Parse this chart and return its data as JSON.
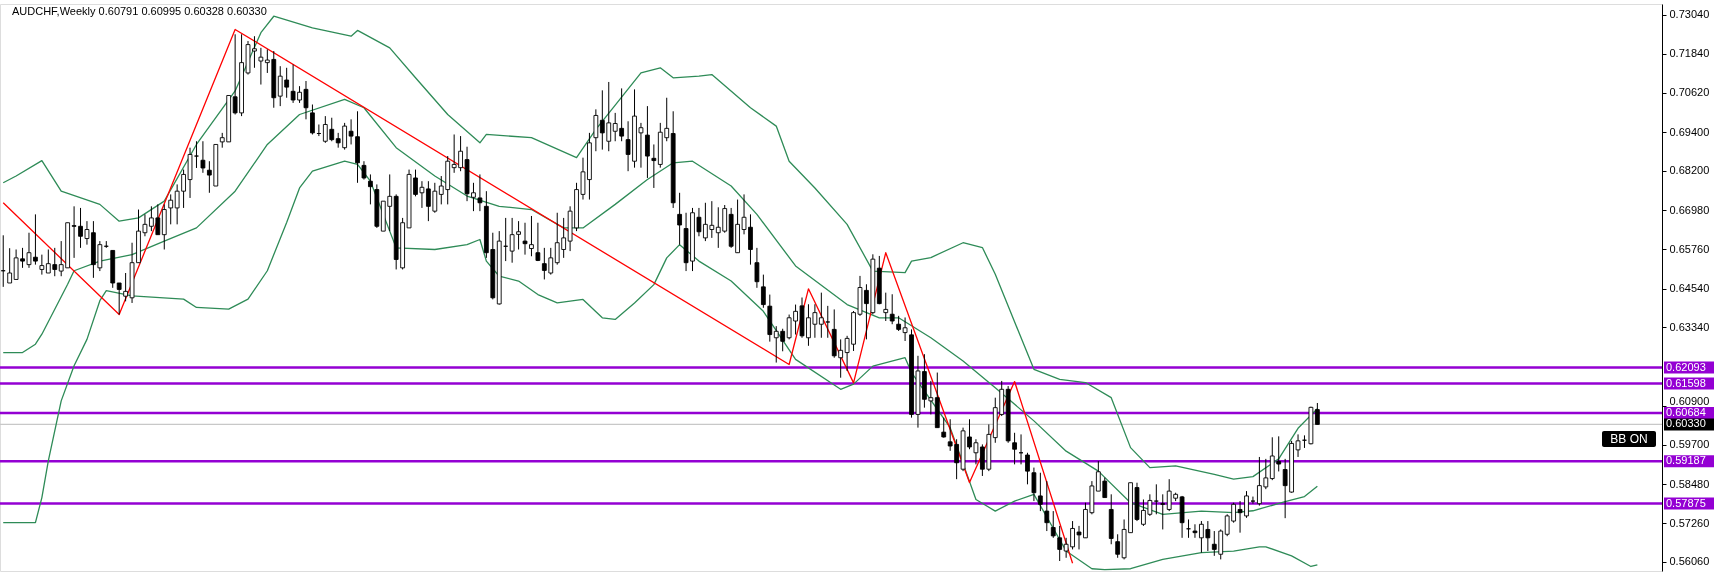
{
  "chart_data": {
    "type": "candlestick",
    "title": "AUDCHF,Weekly 0.60791 0.60995 0.60328 0.60330",
    "categories": [
      null,
      null,
      null,
      null,
      null,
      null,
      null,
      null,
      null,
      null,
      null,
      null,
      null,
      null,
      null,
      null,
      null,
      null,
      null,
      null,
      null,
      null,
      null,
      null,
      null,
      null,
      null,
      null,
      null,
      null,
      null,
      null,
      null,
      null,
      null,
      null,
      null,
      null,
      null,
      null,
      null,
      null,
      null,
      null,
      null,
      null,
      null,
      null,
      null,
      null,
      null,
      null,
      null,
      null,
      null,
      null,
      null,
      null,
      null,
      null,
      null,
      null,
      null,
      null,
      null,
      null,
      null,
      null,
      null,
      null,
      null,
      null,
      null,
      null,
      null,
      null,
      null,
      null,
      null,
      null,
      null,
      null,
      null,
      null,
      null,
      null,
      null,
      null,
      null,
      null,
      null,
      null,
      null,
      null,
      null,
      null,
      null,
      null,
      null,
      null,
      null,
      null,
      null,
      null,
      null,
      null,
      null,
      null,
      null,
      null,
      null,
      null,
      null,
      null,
      null,
      null,
      null,
      null,
      null,
      null,
      null,
      null,
      null,
      null,
      null,
      null,
      null,
      null,
      null,
      null,
      null,
      null,
      null,
      null,
      null,
      null,
      null,
      null,
      null,
      null,
      null,
      null,
      null,
      null,
      null,
      null,
      null,
      null,
      null,
      null,
      null,
      null,
      null,
      null,
      null,
      null,
      null,
      null,
      null,
      null,
      null,
      null,
      null,
      null,
      null,
      null,
      null,
      null,
      null,
      null,
      null,
      null,
      null,
      null,
      null,
      null,
      null,
      null,
      null,
      null,
      null,
      null,
      null,
      null,
      null,
      null,
      null,
      null,
      null,
      null,
      null,
      null,
      null,
      null,
      null,
      null,
      null,
      null,
      null,
      null,
      null,
      null,
      null,
      null,
      null,
      null,
      null,
      null,
      null,
      null,
      null,
      null,
      null,
      null,
      null,
      null,
      null,
      null,
      null,
      null,
      null,
      null,
      null,
      null,
      null,
      null,
      null,
      null,
      null,
      null,
      null,
      null,
      null,
      null,
      null,
      null,
      null,
      null,
      null,
      null,
      null,
      null,
      null,
      null,
      null,
      null,
      null,
      null,
      null,
      null,
      null,
      null,
      null,
      null,
      null,
      null,
      null,
      null
    ],
    "ohlc": [
      [
        0.651,
        0.662,
        0.646,
        0.651
      ],
      [
        0.6472,
        0.658,
        0.6472,
        0.6503
      ],
      [
        0.6483,
        0.6576,
        0.6483,
        0.655
      ],
      [
        0.6547,
        0.6581,
        0.6519,
        0.654
      ],
      [
        0.6529,
        0.6628,
        0.6519,
        0.6566
      ],
      [
        0.6552,
        0.6685,
        0.6529,
        0.654
      ],
      [
        0.6514,
        0.656,
        0.6498,
        0.6526
      ],
      [
        0.6503,
        0.6576,
        0.6503,
        0.6532
      ],
      [
        0.6529,
        0.6581,
        0.6493,
        0.6514
      ],
      [
        0.6509,
        0.6602,
        0.6493,
        0.6529
      ],
      [
        0.6519,
        0.6659,
        0.6519,
        0.6659
      ],
      [
        0.665,
        0.671,
        0.655,
        0.6648
      ],
      [
        0.6648,
        0.6705,
        0.6581,
        0.6617
      ],
      [
        0.661,
        0.6664,
        0.6591,
        0.6638
      ],
      [
        0.6628,
        0.6664,
        0.6488,
        0.6529
      ],
      [
        0.6519,
        0.6602,
        0.6509,
        0.6591
      ],
      [
        0.6586,
        0.6602,
        0.6581,
        0.6586
      ],
      [
        0.6573,
        0.6573,
        0.6457,
        0.6472
      ],
      [
        0.6472,
        0.6472,
        0.6374,
        0.6452
      ],
      [
        0.6431,
        0.6503,
        0.6415,
        0.6446
      ],
      [
        0.6426,
        0.6597,
        0.641,
        0.6535
      ],
      [
        0.6535,
        0.67,
        0.6535,
        0.6633
      ],
      [
        0.6628,
        0.6685,
        0.6617,
        0.6654
      ],
      [
        0.6648,
        0.671,
        0.6633,
        0.6674
      ],
      [
        0.6674,
        0.6716,
        0.6622,
        0.6622
      ],
      [
        0.6622,
        0.6716,
        0.6576,
        0.67
      ],
      [
        0.6705,
        0.6747,
        0.6654,
        0.6729
      ],
      [
        0.6705,
        0.6778,
        0.6654,
        0.6757
      ],
      [
        0.6757,
        0.6824,
        0.6705,
        0.6809
      ],
      [
        0.6793,
        0.6892,
        0.6736,
        0.6871
      ],
      [
        0.6866,
        0.6912,
        0.6829,
        0.6866
      ],
      [
        0.6853,
        0.6912,
        0.6814,
        0.6829
      ],
      [
        0.6822,
        0.685,
        0.6752,
        0.6807
      ],
      [
        0.6773,
        0.6902,
        0.6773,
        0.6902
      ],
      [
        0.691,
        0.6938,
        0.6892,
        0.6923
      ],
      [
        0.691,
        0.7054,
        0.691,
        0.7054
      ],
      [
        0.705,
        0.7244,
        0.6995,
        0.7
      ],
      [
        0.7,
        0.7244,
        0.699,
        0.7156
      ],
      [
        0.7124,
        0.7223,
        0.7119,
        0.7212
      ],
      [
        0.7192,
        0.7238,
        0.714,
        0.7199
      ],
      [
        0.7161,
        0.7202,
        0.7088,
        0.7173
      ],
      [
        0.7156,
        0.7197,
        0.7124,
        0.7164
      ],
      [
        0.7166,
        0.7192,
        0.7016,
        0.7047
      ],
      [
        0.7052,
        0.7145,
        0.7021,
        0.7114
      ],
      [
        0.7102,
        0.714,
        0.7047,
        0.708
      ],
      [
        0.7067,
        0.715,
        0.7031,
        0.704
      ],
      [
        0.704,
        0.7083,
        0.7031,
        0.7064
      ],
      [
        0.7073,
        0.7099,
        0.698,
        0.7016
      ],
      [
        0.7,
        0.7026,
        0.6933,
        0.6938
      ],
      [
        0.6936,
        0.6964,
        0.6928,
        0.6936
      ],
      [
        0.6912,
        0.699,
        0.6907,
        0.6964
      ],
      [
        0.6949,
        0.6985,
        0.6912,
        0.6917
      ],
      [
        0.692,
        0.6938,
        0.6892,
        0.6907
      ],
      [
        0.6892,
        0.6969,
        0.6886,
        0.6959
      ],
      [
        0.6943,
        0.698,
        0.6902,
        0.6928
      ],
      [
        0.6926,
        0.7005,
        0.6783,
        0.6845
      ],
      [
        0.6837,
        0.685,
        0.6793,
        0.6798
      ],
      [
        0.6788,
        0.6809,
        0.6716,
        0.6771
      ],
      [
        0.6762,
        0.6778,
        0.6643,
        0.6648
      ],
      [
        0.6633,
        0.6726,
        0.6633,
        0.6726
      ],
      [
        0.671,
        0.6809,
        0.6633,
        0.6741
      ],
      [
        0.6741,
        0.6747,
        0.6514,
        0.6545
      ],
      [
        0.6519,
        0.6674,
        0.6514,
        0.6659
      ],
      [
        0.6643,
        0.6824,
        0.6643,
        0.6809
      ],
      [
        0.6798,
        0.6824,
        0.6741,
        0.6747
      ],
      [
        0.6752,
        0.6788,
        0.6705,
        0.6769
      ],
      [
        0.6764,
        0.6788,
        0.6664,
        0.671
      ],
      [
        0.6695,
        0.6783,
        0.669,
        0.6757
      ],
      [
        0.6747,
        0.6804,
        0.6716,
        0.6773
      ],
      [
        0.6762,
        0.6866,
        0.6716,
        0.685
      ],
      [
        0.683,
        0.6933,
        0.6814,
        0.684
      ],
      [
        0.683,
        0.6928,
        0.6819,
        0.6881
      ],
      [
        0.6855,
        0.6895,
        0.6726,
        0.6749
      ],
      [
        0.6738,
        0.6783,
        0.6695,
        0.6752
      ],
      [
        0.6736,
        0.6809,
        0.6695,
        0.6721
      ],
      [
        0.671,
        0.6757,
        0.655,
        0.6566
      ],
      [
        0.6576,
        0.6628,
        0.6421,
        0.6426
      ],
      [
        0.6407,
        0.6633,
        0.6405,
        0.6602
      ],
      [
        0.6586,
        0.6674,
        0.654,
        0.6586
      ],
      [
        0.6571,
        0.6674,
        0.6535,
        0.6622
      ],
      [
        0.6623,
        0.6664,
        0.6576,
        0.6631
      ],
      [
        0.6602,
        0.6659,
        0.656,
        0.6594
      ],
      [
        0.6579,
        0.668,
        0.6555,
        0.6591
      ],
      [
        0.6566,
        0.6659,
        0.654,
        0.6542
      ],
      [
        0.6532,
        0.6581,
        0.6483,
        0.6511
      ],
      [
        0.6503,
        0.6581,
        0.6498,
        0.655
      ],
      [
        0.6535,
        0.669,
        0.6529,
        0.6597
      ],
      [
        0.6576,
        0.6674,
        0.655,
        0.6612
      ],
      [
        0.6602,
        0.671,
        0.6571,
        0.6695
      ],
      [
        0.6643,
        0.6783,
        0.6633,
        0.6762
      ],
      [
        0.6747,
        0.6861,
        0.6731,
        0.6817
      ],
      [
        0.6793,
        0.6938,
        0.6731,
        0.6907
      ],
      [
        0.6923,
        0.7011,
        0.6881,
        0.6992
      ],
      [
        0.6977,
        0.707,
        0.6886,
        0.6938
      ],
      [
        0.6912,
        0.7096,
        0.6881,
        0.6969
      ],
      [
        0.6943,
        0.7,
        0.6912,
        0.6967
      ],
      [
        0.6952,
        0.7076,
        0.6912,
        0.6928
      ],
      [
        0.6917,
        0.6974,
        0.6819,
        0.6871
      ],
      [
        0.685,
        0.7073,
        0.683,
        0.699
      ],
      [
        0.6938,
        0.6969,
        0.683,
        0.6954
      ],
      [
        0.6931,
        0.7021,
        0.6798,
        0.6866
      ],
      [
        0.6859,
        0.6902,
        0.6767,
        0.6852
      ],
      [
        0.684,
        0.6969,
        0.683,
        0.694
      ],
      [
        0.6923,
        0.7047,
        0.6912,
        0.6952
      ],
      [
        0.6936,
        0.7005,
        0.6705,
        0.6721
      ],
      [
        0.6685,
        0.6752,
        0.6591,
        0.6652
      ],
      [
        0.6641,
        0.669,
        0.6509,
        0.6535
      ],
      [
        0.654,
        0.6705,
        0.6509,
        0.669
      ],
      [
        0.6676,
        0.6705,
        0.6617,
        0.6631
      ],
      [
        0.6612,
        0.6721,
        0.6602,
        0.6654
      ],
      [
        0.6638,
        0.6726,
        0.6612,
        0.6651
      ],
      [
        0.6628,
        0.6707,
        0.6581,
        0.6645
      ],
      [
        0.6633,
        0.6714,
        0.6628,
        0.6703
      ],
      [
        0.6685,
        0.6705,
        0.6581,
        0.6586
      ],
      [
        0.6566,
        0.6731,
        0.6566,
        0.6654
      ],
      [
        0.6638,
        0.6747,
        0.6623,
        0.6676
      ],
      [
        0.6645,
        0.6685,
        0.6529,
        0.6576
      ],
      [
        0.6535,
        0.6581,
        0.6457,
        0.6476
      ],
      [
        0.646,
        0.6498,
        0.6395,
        0.6405
      ],
      [
        0.64,
        0.6436,
        0.629,
        0.6312
      ],
      [
        0.6302,
        0.6338,
        0.6225,
        0.6322
      ],
      [
        0.6322,
        0.633,
        0.626,
        0.6291
      ],
      [
        0.6302,
        0.6374,
        0.6297,
        0.6364
      ],
      [
        0.6354,
        0.6405,
        0.6312,
        0.6384
      ],
      [
        0.6401,
        0.6427,
        0.6302,
        0.6308
      ],
      [
        0.6302,
        0.6406,
        0.6277,
        0.6364
      ],
      [
        0.6344,
        0.6406,
        0.6302,
        0.638
      ],
      [
        0.6344,
        0.6442,
        0.6302,
        0.6364
      ],
      [
        0.6351,
        0.6401,
        0.6302,
        0.6351
      ],
      [
        0.6328,
        0.639,
        0.624,
        0.6246
      ],
      [
        0.624,
        0.6297,
        0.6178,
        0.6263
      ],
      [
        0.6256,
        0.6308,
        0.6199,
        0.63
      ],
      [
        0.6282,
        0.6385,
        0.6261,
        0.638
      ],
      [
        0.6375,
        0.6494,
        0.637,
        0.6458
      ],
      [
        0.6449,
        0.6468,
        0.6297,
        0.6408
      ],
      [
        0.638,
        0.6561,
        0.6375,
        0.6546
      ],
      [
        0.6518,
        0.6556,
        0.6406,
        0.6408
      ],
      [
        0.638,
        0.6442,
        0.6354,
        0.639
      ],
      [
        0.6375,
        0.6437,
        0.6344,
        0.6354
      ],
      [
        0.6344,
        0.637,
        0.6323,
        0.6328
      ],
      [
        0.6318,
        0.6365,
        0.6292,
        0.6333
      ],
      [
        0.6311,
        0.6328,
        0.6054,
        0.6064
      ],
      [
        0.6064,
        0.6246,
        0.6023,
        0.6199
      ],
      [
        0.6197,
        0.6251,
        0.6085,
        0.6111
      ],
      [
        0.6106,
        0.6168,
        0.6064,
        0.6116
      ],
      [
        0.6116,
        0.6194,
        0.6023,
        0.6023
      ],
      [
        0.6009,
        0.6054,
        0.5992,
        0.5994
      ],
      [
        0.5979,
        0.6049,
        0.5951,
        0.5966
      ],
      [
        0.5971,
        0.5987,
        0.5863,
        0.5914
      ],
      [
        0.5894,
        0.6023,
        0.5888,
        0.6013
      ],
      [
        0.5994,
        0.6049,
        0.5956,
        0.5963
      ],
      [
        0.5945,
        0.5987,
        0.5909,
        0.5976
      ],
      [
        0.5963,
        0.5971,
        0.5873,
        0.5894
      ],
      [
        0.5894,
        0.6033,
        0.5888,
        0.6002
      ],
      [
        0.5992,
        0.6116,
        0.5976,
        0.6085
      ],
      [
        0.6064,
        0.6168,
        0.6059,
        0.6142
      ],
      [
        0.6142,
        0.6152,
        0.5976,
        0.5982
      ],
      [
        0.5976,
        0.6007,
        0.5909,
        0.5956
      ],
      [
        0.5945,
        0.6002,
        0.5909,
        0.5945
      ],
      [
        0.5938,
        0.5945,
        0.5847,
        0.5888
      ],
      [
        0.5883,
        0.5899,
        0.5795,
        0.5821
      ],
      [
        0.5811,
        0.5883,
        0.5764,
        0.5785
      ],
      [
        0.5764,
        0.5857,
        0.5702,
        0.5728
      ],
      [
        0.5713,
        0.5764,
        0.5681,
        0.5687
      ],
      [
        0.5681,
        0.5718,
        0.5609,
        0.5645
      ],
      [
        0.564,
        0.5681,
        0.5619,
        0.5661
      ],
      [
        0.5653,
        0.5733,
        0.5645,
        0.571
      ],
      [
        0.5699,
        0.5718,
        0.5645,
        0.569
      ],
      [
        0.5681,
        0.579,
        0.5681,
        0.5769
      ],
      [
        0.5759,
        0.5857,
        0.5754,
        0.5842
      ],
      [
        0.5826,
        0.5919,
        0.5826,
        0.5886
      ],
      [
        0.5857,
        0.5868,
        0.5806,
        0.5806
      ],
      [
        0.5769,
        0.5816,
        0.5661,
        0.5679
      ],
      [
        0.5669,
        0.5692,
        0.5619,
        0.563
      ],
      [
        0.5619,
        0.5738,
        0.5614,
        0.5707
      ],
      [
        0.5697,
        0.5852,
        0.5697,
        0.5852
      ],
      [
        0.5837,
        0.5852,
        0.5733,
        0.5738
      ],
      [
        0.5723,
        0.58,
        0.5718,
        0.5766
      ],
      [
        0.5754,
        0.5816,
        0.5749,
        0.5797
      ],
      [
        0.5795,
        0.5847,
        0.5754,
        0.5795
      ],
      [
        0.5787,
        0.5816,
        0.5707,
        0.5785
      ],
      [
        0.5769,
        0.5863,
        0.5764,
        0.5826
      ],
      [
        0.5804,
        0.5821,
        0.5795,
        0.5816
      ],
      [
        0.5808,
        0.5811,
        0.5681,
        0.5728
      ],
      [
        0.5709,
        0.5738,
        0.5681,
        0.5709
      ],
      [
        0.5702,
        0.5723,
        0.5681,
        0.5697
      ],
      [
        0.5681,
        0.5733,
        0.5635,
        0.5723
      ],
      [
        0.5707,
        0.5733,
        0.564,
        0.5681
      ],
      [
        0.5661,
        0.5702,
        0.5625,
        0.5645
      ],
      [
        0.563,
        0.5707,
        0.5614,
        0.5702
      ],
      [
        0.5692,
        0.5754,
        0.5686,
        0.5749
      ],
      [
        0.5733,
        0.579,
        0.5728,
        0.5785
      ],
      [
        0.5769,
        0.5795,
        0.5697,
        0.5759
      ],
      [
        0.5749,
        0.5826,
        0.5743,
        0.5811
      ],
      [
        0.5795,
        0.5809,
        0.5787,
        0.5795
      ],
      [
        0.5787,
        0.5932,
        0.5781,
        0.5843
      ],
      [
        0.5839,
        0.5926,
        0.5832,
        0.5867
      ],
      [
        0.5865,
        0.5993,
        0.586,
        0.5935
      ],
      [
        0.5918,
        0.5996,
        0.5887,
        0.591
      ],
      [
        0.5893,
        0.5926,
        0.5742,
        0.5843
      ],
      [
        0.5823,
        0.5982,
        0.5821,
        0.5974
      ],
      [
        0.5954,
        0.6002,
        0.5932,
        0.5982
      ],
      [
        0.5984,
        0.5999,
        0.596,
        0.5984
      ],
      [
        0.5973,
        0.6088,
        0.5971,
        0.6086
      ],
      [
        0.60791,
        0.60995,
        0.60328,
        0.6033
      ],
      null,
      null,
      null,
      null,
      null,
      null,
      null,
      null,
      null,
      null,
      null,
      null,
      null,
      null,
      null,
      null,
      null,
      null,
      null,
      null,
      null,
      null,
      null,
      null,
      null,
      null,
      null,
      null,
      null,
      null,
      null,
      null,
      null,
      null,
      null,
      null,
      null,
      null,
      null,
      null,
      null,
      null,
      null,
      null,
      null,
      null,
      null,
      null,
      null,
      null,
      null,
      null,
      null
    ],
    "series": [
      {
        "type": "line",
        "color": "#2e8b57",
        "values": [
          0.6783,
          null,
          0.6804,
          null,
          null,
          null,
          0.6852,
          null,
          null,
          0.6757,
          null,
          null,
          null,
          null,
          null,
          0.6716,
          null,
          null,
          0.6664,
          null,
          null,
          0.6674,
          null,
          null,
          null,
          0.6726,
          null,
          null,
          null,
          null,
          0.6902,
          null,
          null,
          null,
          null,
          null,
          0.7068,
          null,
          null,
          null,
          0.7249,
          null,
          0.73,
          null,
          null,
          null,
          null,
          null,
          0.7264,
          null,
          null,
          null,
          null,
          null,
          0.7238,
          0.7256,
          null,
          null,
          null,
          null,
          0.7202,
          null,
          null,
          null,
          0.7109,
          null,
          null,
          null,
          null,
          0.6995,
          null,
          null,
          null,
          null,
          0.6907,
          0.6933,
          null,
          null,
          null,
          null,
          null,
          null,
          0.6923,
          null,
          null,
          null,
          null,
          null,
          null,
          0.6861,
          null,
          null,
          0.6949,
          null,
          null,
          null,
          null,
          null,
          null,
          0.7124,
          null,
          null,
          0.714,
          null,
          0.7109,
          null,
          null,
          null,
          0.7114,
          null,
          0.7119,
          null,
          null,
          null,
          null,
          null,
          0.7016,
          null,
          null,
          null,
          0.6959,
          null,
          0.685,
          null,
          null,
          null,
          0.6767,
          null,
          null,
          null,
          null,
          0.6654,
          null,
          null,
          null,
          0.6509,
          null,
          null,
          null,
          null,
          0.6504,
          0.654,
          null,
          null,
          0.6551,
          null,
          null,
          null,
          null,
          0.6597,
          null,
          null,
          0.6582,
          null,
          0.6499,
          null,
          null,
          null,
          null,
          null,
          0.6204,
          null,
          null,
          null,
          0.6173,
          null,
          null,
          null,
          0.6163,
          null,
          null,
          null,
          0.6116,
          null,
          null,
          0.5961,
          null,
          null,
          0.5899,
          null,
          null,
          null,
          0.5904,
          null,
          null,
          null,
          null,
          null,
          0.5878,
          null,
          null,
          0.5863,
          null,
          null,
          0.5871,
          null,
          null,
          null,
          0.5926,
          null,
          null,
          0.6021,
          null,
          null,
          0.6082,
          null,
          null,
          null,
          null,
          null,
          null,
          null,
          null,
          null,
          null,
          null,
          null,
          null,
          null,
          null,
          null,
          null,
          null,
          null,
          null,
          null,
          null,
          null,
          null,
          null,
          null,
          null,
          null,
          null,
          null,
          null,
          null,
          null,
          null,
          null,
          null,
          null,
          null,
          null,
          null,
          null,
          null,
          null,
          null,
          null,
          null,
          null,
          null,
          null,
          null,
          null,
          null,
          null
        ]
      },
      {
        "type": "line",
        "color": "#2e8b57",
        "values": [
          0.6256,
          null,
          null,
          0.6256,
          null,
          0.6282,
          0.6313,
          null,
          null,
          null,
          0.6468,
          0.651,
          null,
          null,
          null,
          0.654,
          null,
          null,
          null,
          null,
          0.656,
          null,
          null,
          null,
          null,
          0.6602,
          null,
          null,
          null,
          null,
          0.6643,
          null,
          null,
          null,
          null,
          null,
          0.6757,
          null,
          null,
          null,
          null,
          0.6902,
          null,
          null,
          null,
          null,
          0.6995,
          null,
          null,
          null,
          null,
          null,
          null,
          0.7042,
          null,
          null,
          0.7016,
          null,
          null,
          null,
          null,
          0.6892,
          null,
          null,
          null,
          null,
          null,
          0.6804,
          null,
          null,
          null,
          null,
          0.6742,
          null,
          null,
          null,
          null,
          0.671,
          null,
          null,
          null,
          null,
          0.67,
          null,
          null,
          null,
          null,
          0.6643,
          null,
          null,
          0.6643,
          null,
          null,
          null,
          null,
          0.6716,
          null,
          null,
          null,
          null,
          0.6793,
          null,
          null,
          null,
          0.6845,
          null,
          null,
          0.685,
          null,
          null,
          null,
          null,
          null,
          0.6773,
          null,
          null,
          null,
          0.6685,
          null,
          null,
          null,
          null,
          null,
          0.6525,
          null,
          null,
          null,
          null,
          null,
          null,
          null,
          0.6405,
          null,
          null,
          null,
          null,
          0.6364,
          null,
          null,
          0.6364,
          null,
          null,
          null,
          null,
          0.6302,
          null,
          null,
          null,
          null,
          0.623,
          null,
          null,
          null,
          null,
          0.6147,
          null,
          null,
          null,
          null,
          null,
          0.6044,
          null,
          null,
          null,
          null,
          0.595,
          null,
          null,
          null,
          null,
          0.5888,
          null,
          null,
          null,
          null,
          0.579,
          null,
          null,
          null,
          null,
          0.5754,
          null,
          null,
          null,
          null,
          null,
          0.5764,
          null,
          null,
          null,
          null,
          0.5759,
          null,
          null,
          0.5765,
          null,
          null,
          null,
          null,
          0.5793,
          null,
          null,
          0.5809,
          null,
          0.5841,
          null,
          null,
          null,
          null,
          null,
          null,
          null,
          null,
          null,
          null,
          null,
          null,
          null,
          null,
          null,
          null,
          null,
          null,
          null,
          null,
          null,
          null,
          null,
          null,
          null,
          null,
          null,
          null,
          null,
          null,
          null,
          null,
          null,
          null,
          null,
          null,
          null,
          null,
          null,
          null,
          null,
          null,
          null,
          null,
          null,
          null,
          null,
          null,
          null,
          null,
          null,
          null,
          null
        ]
      },
      {
        "type": "line",
        "color": "#2e8b57",
        "values": [
          0.5728,
          null,
          null,
          null,
          null,
          0.5728,
          0.5806,
          0.592,
          null,
          0.6106,
          null,
          0.6215,
          null,
          0.6297,
          null,
          0.6417,
          0.6448,
          null,
          null,
          null,
          0.6432,
          null,
          null,
          null,
          null,
          null,
          null,
          null,
          0.6422,
          null,
          0.6396,
          null,
          null,
          null,
          null,
          0.6391,
          null,
          null,
          0.6422,
          null,
          null,
          0.651,
          null,
          null,
          0.666,
          null,
          0.6767,
          null,
          0.6819,
          null,
          null,
          null,
          null,
          0.685,
          null,
          0.684,
          null,
          0.6788,
          null,
          0.6685,
          null,
          0.6581,
          null,
          null,
          null,
          null,
          null,
          0.6576,
          null,
          null,
          null,
          null,
          0.6591,
          null,
          0.6607,
          0.654,
          null,
          0.6493,
          null,
          null,
          0.6478,
          null,
          null,
          0.6436,
          null,
          null,
          0.641,
          null,
          null,
          null,
          0.6421,
          null,
          null,
          0.6364,
          null,
          0.6359,
          null,
          null,
          0.641,
          null,
          null,
          0.6467,
          null,
          0.655,
          null,
          0.6591,
          null,
          null,
          0.654,
          null,
          null,
          null,
          null,
          0.6478,
          null,
          null,
          null,
          null,
          0.6384,
          null,
          null,
          null,
          null,
          0.6235,
          null,
          null,
          null,
          null,
          null,
          null,
          0.6142,
          null,
          0.6158,
          null,
          null,
          0.6214,
          null,
          null,
          null,
          null,
          0.624,
          0.6194,
          null,
          null,
          null,
          null,
          null,
          0.6023,
          null,
          null,
          null,
          0.58,
          null,
          null,
          0.5764,
          null,
          null,
          0.5795,
          null,
          null,
          0.5816,
          null,
          null,
          null,
          null,
          0.564,
          null,
          null,
          null,
          0.5585,
          null,
          0.5582,
          null,
          null,
          null,
          0.5585,
          null,
          null,
          null,
          null,
          0.5614,
          null,
          null,
          null,
          null,
          null,
          0.5635,
          null,
          null,
          null,
          null,
          0.564,
          null,
          null,
          null,
          0.5653,
          0.5653,
          null,
          null,
          null,
          0.5625,
          null,
          null,
          0.5592,
          0.5597,
          null,
          null,
          null,
          null,
          null,
          null,
          null,
          null,
          null,
          null,
          null,
          null,
          null,
          null,
          null,
          null,
          null,
          null,
          null,
          null,
          null,
          null,
          null,
          null,
          null,
          null,
          null,
          null,
          null,
          null,
          null,
          null,
          null,
          null,
          null,
          null,
          null,
          null,
          null,
          null,
          null,
          null,
          null,
          null,
          null,
          null,
          null,
          null,
          null,
          null,
          null,
          null,
          null
        ]
      },
      {
        "type": "line",
        "color": "#ff0000",
        "values": [
          0.6721,
          null,
          null,
          null,
          null,
          null,
          null,
          null,
          null,
          null,
          null,
          null,
          null,
          null,
          null,
          null,
          null,
          null,
          0.6374,
          null,
          null,
          null,
          null,
          null,
          null,
          null,
          null,
          null,
          null,
          null,
          null,
          null,
          null,
          null,
          null,
          null,
          0.7259,
          null,
          null,
          null,
          null,
          null,
          null,
          null,
          null,
          null,
          null,
          null,
          null,
          null,
          null,
          null,
          null,
          null,
          null,
          null,
          null,
          null,
          null,
          null,
          null,
          null,
          null,
          null,
          null,
          null,
          null,
          null,
          null,
          null,
          null,
          null,
          null,
          null,
          null,
          null,
          null,
          null,
          null,
          null,
          null,
          null,
          null,
          null,
          null,
          null,
          null,
          null,
          null,
          null,
          null,
          null,
          null,
          null,
          null,
          null,
          null,
          null,
          null,
          null,
          null,
          null,
          null,
          null,
          null,
          null,
          null,
          null,
          null,
          null,
          null,
          null,
          null,
          null,
          null,
          null,
          null,
          null,
          null,
          null,
          null,
          null,
          0.6219,
          null,
          null,
          0.6454,
          null,
          null,
          null,
          null,
          null,
          null,
          0.6162,
          null,
          null,
          null,
          null,
          0.6566,
          null,
          null,
          null,
          null,
          null,
          null,
          null,
          null,
          null,
          null,
          null,
          null,
          0.5853,
          null,
          null,
          null,
          null,
          null,
          null,
          0.6166,
          null,
          null,
          null,
          null,
          null,
          null,
          null,
          null,
          0.5602,
          null,
          null,
          null,
          null,
          null,
          null,
          null,
          null,
          null,
          null,
          null,
          null,
          null,
          null,
          null,
          null,
          null,
          null,
          null,
          null,
          null,
          null,
          null,
          null,
          null,
          null,
          null,
          null,
          null,
          null,
          null,
          null,
          null,
          null,
          null,
          null,
          null,
          null,
          null,
          null,
          null,
          null,
          null,
          null,
          null,
          null,
          null,
          null,
          null,
          null,
          null,
          null,
          null,
          null,
          null,
          null,
          null,
          null,
          null,
          null,
          null,
          null,
          null,
          null,
          null,
          null,
          null,
          null,
          null,
          null,
          null,
          null,
          null,
          null,
          null,
          null,
          null,
          null,
          null,
          null,
          null,
          null,
          null,
          null,
          null,
          null,
          null,
          null,
          null,
          null,
          null
        ]
      }
    ],
    "ylim": [
      0.5578,
      0.7338
    ],
    "yticks": [
      {
        "value": 0.7304,
        "label": "0.73040"
      },
      {
        "value": 0.7184,
        "label": "0.71840"
      },
      {
        "value": 0.7062,
        "label": "0.70620"
      },
      {
        "value": 0.694,
        "label": "0.69400"
      },
      {
        "value": 0.682,
        "label": "0.68200"
      },
      {
        "value": 0.6698,
        "label": "0.66980"
      },
      {
        "value": 0.6576,
        "label": "0.65760"
      },
      {
        "value": 0.6454,
        "label": "0.64540"
      },
      {
        "value": 0.6334,
        "label": "0.63340"
      },
      {
        "value": 0.609,
        "label": "0.60900"
      },
      {
        "value": 0.597,
        "label": "0.59700"
      },
      {
        "value": 0.5848,
        "label": "0.58480"
      },
      {
        "value": 0.5726,
        "label": "0.57260"
      },
      {
        "value": 0.5606,
        "label": "0.56060"
      }
    ],
    "tick_labels": "y",
    "ref_lines": [
      {
        "axis": "y",
        "value": 0.62093,
        "label": "0.62093",
        "color": "#9400d3"
      },
      {
        "axis": "y",
        "value": 0.61598,
        "label": "0.61598",
        "color": "#9400d3"
      },
      {
        "axis": "y",
        "value": 0.60684,
        "label": "0.60684",
        "color": "#9400d3"
      },
      {
        "axis": "y",
        "value": 0.6033,
        "label": "0.60330",
        "color": "#c8c8c8"
      },
      {
        "axis": "y",
        "value": 0.59187,
        "label": "0.59187",
        "color": "#9400d3"
      },
      {
        "axis": "y",
        "value": 0.57875,
        "label": "0.57875",
        "color": "#9400d3"
      }
    ],
    "annotations": [
      "BB ON"
    ]
  }
}
